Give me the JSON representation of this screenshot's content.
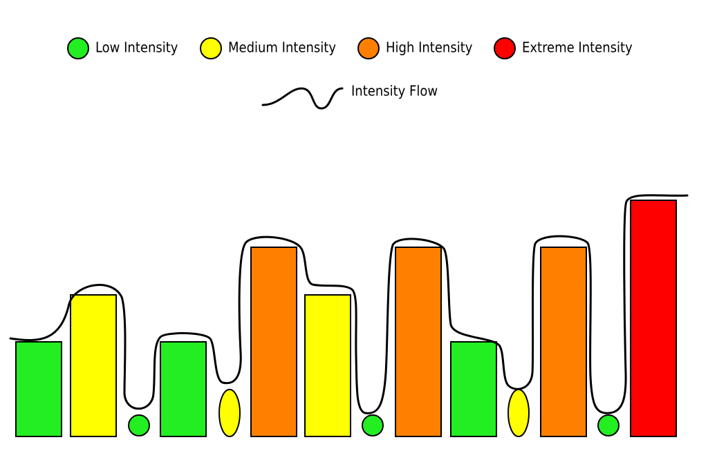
{
  "legend": {
    "items": [
      {
        "label": "Low Intensity",
        "color": "#22ee22",
        "icon": "circle-icon"
      },
      {
        "label": "Medium Intensity",
        "color": "#ffff00",
        "icon": "circle-icon"
      },
      {
        "label": "High Intensity",
        "color": "#ff8000",
        "icon": "circle-icon"
      },
      {
        "label": "Extreme Intensity",
        "color": "#ff0000",
        "icon": "circle-icon"
      }
    ],
    "flow": {
      "label": "Intensity Flow",
      "icon": "wave-line-icon"
    }
  },
  "chart_data": {
    "type": "bar",
    "legend_position": "top-center",
    "levels": [
      "Low",
      "Medium",
      "High",
      "Extreme"
    ],
    "sequence": [
      {
        "kind": "bar",
        "level": "Low"
      },
      {
        "kind": "bar",
        "level": "Medium"
      },
      {
        "kind": "dot",
        "level": "Low"
      },
      {
        "kind": "bar",
        "level": "Low"
      },
      {
        "kind": "dot",
        "level": "Medium"
      },
      {
        "kind": "bar",
        "level": "High"
      },
      {
        "kind": "bar",
        "level": "Medium"
      },
      {
        "kind": "dot",
        "level": "Low"
      },
      {
        "kind": "bar",
        "level": "High"
      },
      {
        "kind": "bar",
        "level": "Low"
      },
      {
        "kind": "dot",
        "level": "Medium"
      },
      {
        "kind": "bar",
        "level": "High"
      },
      {
        "kind": "dot",
        "level": "Low"
      },
      {
        "kind": "bar",
        "level": "Extreme"
      }
    ]
  }
}
